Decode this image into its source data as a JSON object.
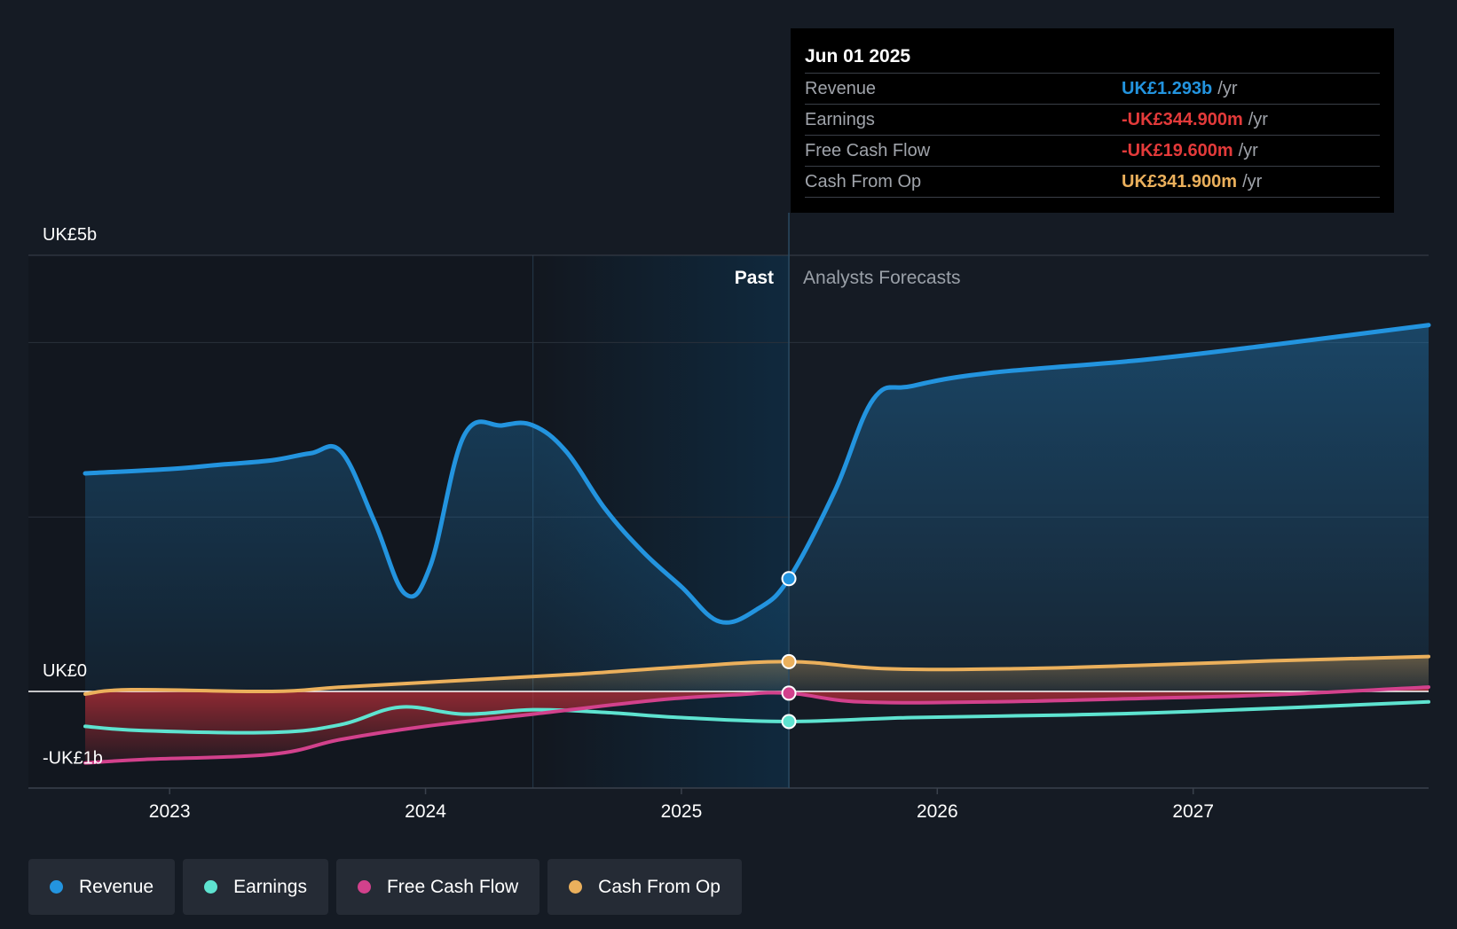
{
  "colors": {
    "background": "#151b24",
    "revenue": "#2394df",
    "earnings": "#5ee3d0",
    "free_cash_flow": "#d2418c",
    "cash_from_op": "#ebb05c",
    "negative": "#e33a3a"
  },
  "tooltip": {
    "date": "Jun 01 2025",
    "rows": [
      {
        "label": "Revenue",
        "value": "UK£1.293b",
        "unit": "/yr",
        "color": "#2394df"
      },
      {
        "label": "Earnings",
        "value": "-UK£344.900m",
        "unit": "/yr",
        "color": "#e33a3a"
      },
      {
        "label": "Free Cash Flow",
        "value": "-UK£19.600m",
        "unit": "/yr",
        "color": "#e33a3a"
      },
      {
        "label": "Cash From Op",
        "value": "UK£341.900m",
        "unit": "/yr",
        "color": "#ebb05c"
      }
    ]
  },
  "chart_data": {
    "type": "line",
    "y_tick_labels": [
      "UK£5b",
      "UK£0",
      "-UK£1b"
    ],
    "ylim": [
      -1,
      5
    ],
    "xlim": [
      2022.67,
      2027.92
    ],
    "x_tick_labels": [
      "2023",
      "2024",
      "2025",
      "2026",
      "2027"
    ],
    "x_ticks": [
      2023,
      2024,
      2025,
      2026,
      2027
    ],
    "divider_x": 2025.42,
    "highlight_start_x": 2024.42,
    "past_label": "Past",
    "forecast_label": "Analysts Forecasts",
    "grid": true,
    "legend_position": "bottom",
    "series": [
      {
        "name": "Revenue",
        "key": "revenue",
        "area": true,
        "points": [
          [
            2022.67,
            2.5
          ],
          [
            2023.0,
            2.55
          ],
          [
            2023.2,
            2.6
          ],
          [
            2023.4,
            2.65
          ],
          [
            2023.55,
            2.73
          ],
          [
            2023.67,
            2.75
          ],
          [
            2023.8,
            1.95
          ],
          [
            2023.92,
            1.12
          ],
          [
            2024.02,
            1.45
          ],
          [
            2024.15,
            2.93
          ],
          [
            2024.3,
            3.05
          ],
          [
            2024.42,
            3.05
          ],
          [
            2024.55,
            2.75
          ],
          [
            2024.7,
            2.1
          ],
          [
            2024.85,
            1.6
          ],
          [
            2025.0,
            1.2
          ],
          [
            2025.15,
            0.8
          ],
          [
            2025.3,
            0.95
          ],
          [
            2025.42,
            1.293
          ],
          [
            2025.6,
            2.3
          ],
          [
            2025.75,
            3.35
          ],
          [
            2025.9,
            3.5
          ],
          [
            2026.2,
            3.65
          ],
          [
            2026.8,
            3.8
          ],
          [
            2027.3,
            3.97
          ],
          [
            2027.92,
            4.2
          ]
        ]
      },
      {
        "name": "Earnings",
        "key": "earnings",
        "area": false,
        "points": [
          [
            2022.67,
            -0.4
          ],
          [
            2022.9,
            -0.45
          ],
          [
            2023.4,
            -0.47
          ],
          [
            2023.67,
            -0.38
          ],
          [
            2023.9,
            -0.18
          ],
          [
            2024.15,
            -0.26
          ],
          [
            2024.42,
            -0.21
          ],
          [
            2024.7,
            -0.24
          ],
          [
            2025.0,
            -0.3
          ],
          [
            2025.42,
            -0.345
          ],
          [
            2025.9,
            -0.3
          ],
          [
            2026.5,
            -0.27
          ],
          [
            2027.0,
            -0.23
          ],
          [
            2027.92,
            -0.12
          ]
        ]
      },
      {
        "name": "Free Cash Flow",
        "key": "free_cash_flow",
        "area": true,
        "points": [
          [
            2022.67,
            -0.82
          ],
          [
            2022.9,
            -0.78
          ],
          [
            2023.4,
            -0.72
          ],
          [
            2023.67,
            -0.55
          ],
          [
            2024.0,
            -0.4
          ],
          [
            2024.42,
            -0.26
          ],
          [
            2024.9,
            -0.1
          ],
          [
            2025.2,
            -0.04
          ],
          [
            2025.42,
            -0.0196
          ],
          [
            2025.7,
            -0.12
          ],
          [
            2026.2,
            -0.12
          ],
          [
            2026.8,
            -0.08
          ],
          [
            2027.3,
            -0.04
          ],
          [
            2027.92,
            0.05
          ]
        ]
      },
      {
        "name": "Cash From Op",
        "key": "cash_from_op",
        "area": true,
        "points": [
          [
            2022.67,
            -0.03
          ],
          [
            2022.85,
            0.02
          ],
          [
            2023.4,
            0.0
          ],
          [
            2023.67,
            0.05
          ],
          [
            2024.1,
            0.12
          ],
          [
            2024.6,
            0.2
          ],
          [
            2025.0,
            0.28
          ],
          [
            2025.42,
            0.342
          ],
          [
            2025.8,
            0.26
          ],
          [
            2026.3,
            0.26
          ],
          [
            2026.8,
            0.3
          ],
          [
            2027.3,
            0.35
          ],
          [
            2027.92,
            0.4
          ]
        ]
      }
    ]
  },
  "legend": [
    {
      "label": "Revenue",
      "color": "#2394df"
    },
    {
      "label": "Earnings",
      "color": "#5ee3d0"
    },
    {
      "label": "Free Cash Flow",
      "color": "#d2418c"
    },
    {
      "label": "Cash From Op",
      "color": "#ebb05c"
    }
  ]
}
